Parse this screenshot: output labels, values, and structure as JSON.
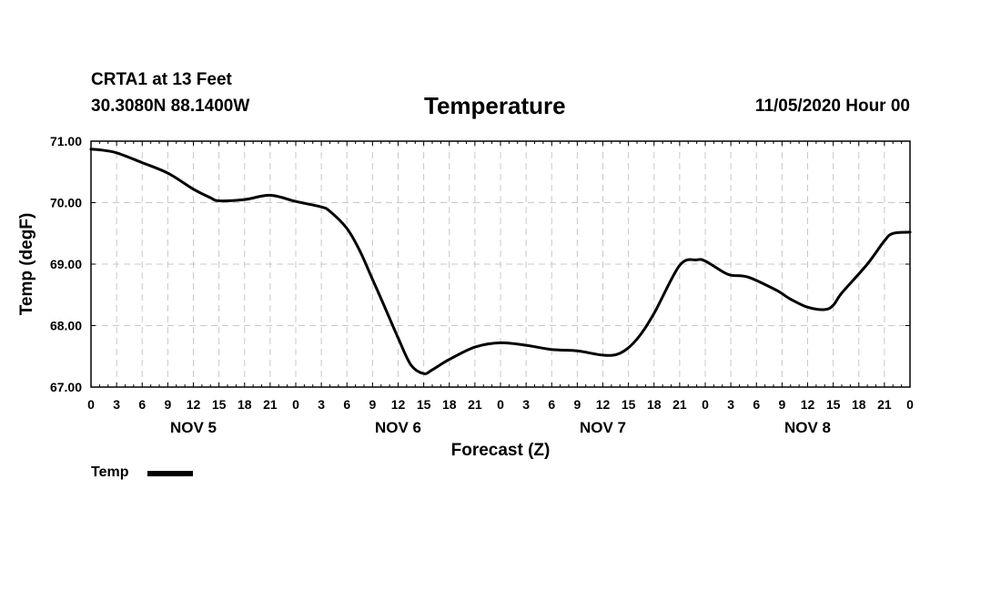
{
  "header": {
    "station": "CRTA1 at 13 Feet",
    "coords": "30.3080N 88.1400W",
    "title": "Temperature",
    "issued": "11/05/2020 Hour 00"
  },
  "legend": {
    "label": "Temp"
  },
  "chart_data": {
    "type": "line",
    "title": "Temperature",
    "xlabel": "Forecast (Z)",
    "ylabel": "Temp (degF)",
    "ylim": [
      67.0,
      71.0
    ],
    "xlim_hours": [
      0,
      96
    ],
    "y_ticks": [
      "67.00",
      "68.00",
      "69.00",
      "70.00",
      "71.00"
    ],
    "y_tick_values": [
      67,
      68,
      69,
      70,
      71
    ],
    "x_tick_labels": [
      "0",
      "3",
      "6",
      "9",
      "12",
      "15",
      "18",
      "21",
      "0",
      "3",
      "6",
      "9",
      "12",
      "15",
      "18",
      "21",
      "0",
      "3",
      "6",
      "9",
      "12",
      "15",
      "18",
      "21",
      "0",
      "3",
      "6",
      "9",
      "12",
      "15",
      "18",
      "21",
      "0"
    ],
    "day_labels": [
      "NOV 5",
      "NOV 6",
      "NOV 7",
      "NOV 8"
    ],
    "day_label_hours": [
      12,
      36,
      60,
      84
    ],
    "grid": true,
    "legend_position": "bottom-left",
    "series": [
      {
        "name": "Temp",
        "color": "#000000",
        "hours": [
          0,
          1,
          3,
          6,
          9,
          12,
          14,
          15,
          18,
          21,
          24,
          27,
          28,
          30,
          31.5,
          33,
          34.5,
          36,
          37.5,
          39,
          40,
          42,
          45,
          48,
          51,
          54,
          57,
          60,
          62,
          64,
          66,
          69,
          71,
          72,
          74,
          75,
          77,
          80,
          81,
          82,
          84,
          86,
          87,
          88,
          91,
          93,
          94,
          96
        ],
        "values": [
          70.87,
          70.86,
          70.81,
          70.65,
          70.48,
          70.22,
          70.08,
          70.03,
          70.05,
          70.12,
          70.02,
          69.93,
          69.86,
          69.58,
          69.22,
          68.75,
          68.28,
          67.8,
          67.36,
          67.22,
          67.28,
          67.45,
          67.65,
          67.72,
          67.68,
          67.61,
          67.59,
          67.52,
          67.55,
          67.78,
          68.2,
          68.98,
          69.07,
          69.05,
          68.88,
          68.82,
          68.79,
          68.6,
          68.52,
          68.43,
          68.3,
          68.26,
          68.33,
          68.53,
          69.0,
          69.38,
          69.5,
          69.52
        ]
      }
    ]
  }
}
